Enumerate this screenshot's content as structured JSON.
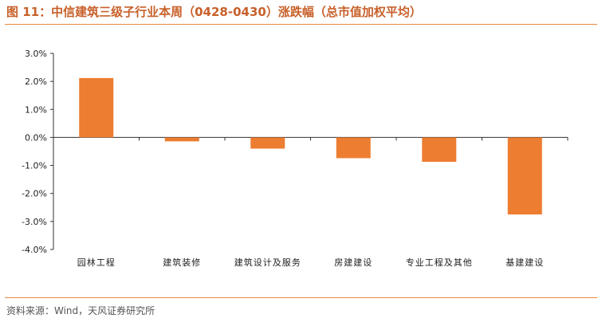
{
  "title": "图 11：中信建筑三级子行业本周（0428-0430）涨跌幅（总市值加权平均）",
  "source": "资料来源：Wind，天风证券研究所",
  "colors": {
    "bar": "#ed7d31",
    "accent": "#e58a45",
    "title": "#c8602a"
  },
  "chart_data": {
    "type": "bar",
    "title": "",
    "xlabel": "",
    "ylabel": "",
    "categories": [
      "园林工程",
      "建筑装修",
      "建筑设计及服务",
      "房建建设",
      "专业工程及其他",
      "基建建设"
    ],
    "values": [
      2.12,
      -0.14,
      -0.4,
      -0.74,
      -0.87,
      -2.75
    ],
    "ylim": [
      -4.0,
      3.0
    ],
    "yticks": [
      3.0,
      2.0,
      1.0,
      0.0,
      -1.0,
      -2.0,
      -3.0,
      -4.0
    ],
    "ytick_labels": [
      "3.0%",
      "2.0%",
      "1.0%",
      "0.0%",
      "-1.0%",
      "-2.0%",
      "-3.0%",
      "-4.0%"
    ],
    "grid": false,
    "legend": "none"
  }
}
